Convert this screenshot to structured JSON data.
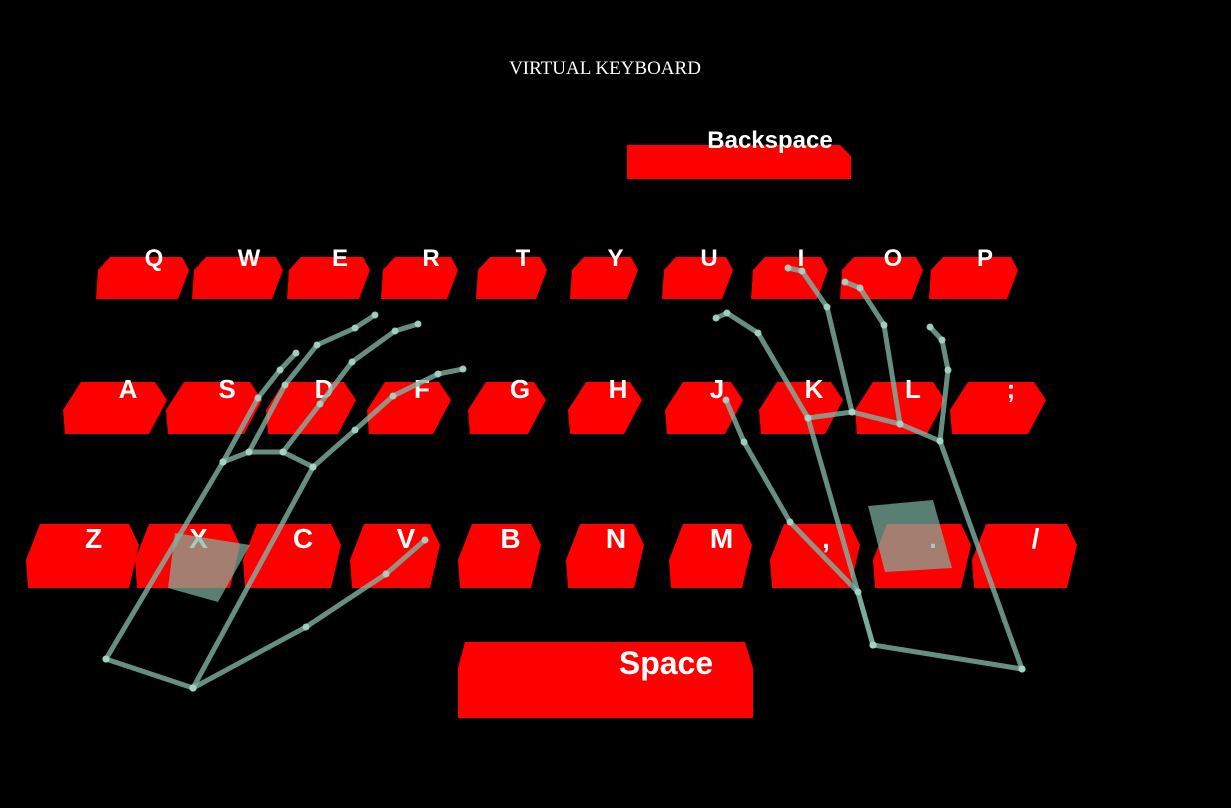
{
  "title": "VIRTUAL KEYBOARD",
  "colors": {
    "background": "#000000",
    "key": "#ff0000",
    "label": "#ffffff",
    "hand": "#7fb3a3"
  },
  "keyboard": {
    "backspace": "Backspace",
    "row1": [
      "Q",
      "W",
      "E",
      "R",
      "T",
      "Y",
      "U",
      "I",
      "O",
      "P"
    ],
    "row2": [
      "A",
      "S",
      "D",
      "F",
      "G",
      "H",
      "J",
      "K",
      "L",
      ";"
    ],
    "row3": [
      "Z",
      "X",
      "C",
      "V",
      "B",
      "N",
      "M",
      ",",
      ".",
      "/"
    ],
    "space": "Space"
  },
  "hands": [
    "left-hand",
    "right-hand"
  ]
}
